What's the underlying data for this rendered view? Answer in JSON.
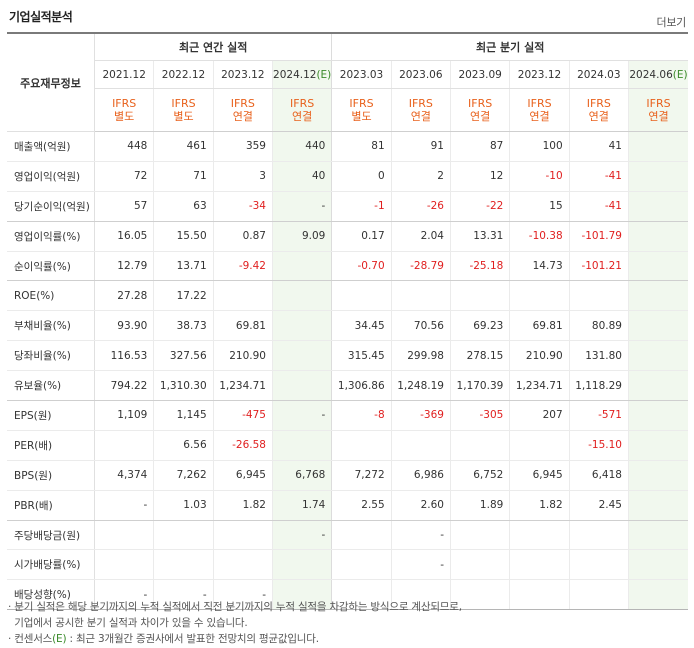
{
  "title": "기업실적분석",
  "more_label": "더보기",
  "header": {
    "label_col": "주요재무정보",
    "annual_group": "최근 연간 실적",
    "quarter_group": "최근 분기 실적",
    "periods": [
      {
        "date": "2021.12",
        "est": "",
        "ifrs": "IFRS",
        "basis": "별도"
      },
      {
        "date": "2022.12",
        "est": "",
        "ifrs": "IFRS",
        "basis": "별도"
      },
      {
        "date": "2023.12",
        "est": "",
        "ifrs": "IFRS",
        "basis": "연결"
      },
      {
        "date": "2024.12",
        "est": "(E)",
        "ifrs": "IFRS",
        "basis": "연결"
      },
      {
        "date": "2023.03",
        "est": "",
        "ifrs": "IFRS",
        "basis": "별도"
      },
      {
        "date": "2023.06",
        "est": "",
        "ifrs": "IFRS",
        "basis": "연결"
      },
      {
        "date": "2023.09",
        "est": "",
        "ifrs": "IFRS",
        "basis": "연결"
      },
      {
        "date": "2023.12",
        "est": "",
        "ifrs": "IFRS",
        "basis": "연결"
      },
      {
        "date": "2024.03",
        "est": "",
        "ifrs": "IFRS",
        "basis": "연결"
      },
      {
        "date": "2024.06",
        "est": "(E)",
        "ifrs": "IFRS",
        "basis": "연결"
      }
    ]
  },
  "rows": [
    {
      "label": "매출액(억원)",
      "values": [
        "448",
        "461",
        "359",
        "440",
        "81",
        "91",
        "87",
        "100",
        "41",
        ""
      ]
    },
    {
      "label": "영업이익(억원)",
      "values": [
        "72",
        "71",
        "3",
        "40",
        "0",
        "2",
        "12",
        "-10",
        "-41",
        ""
      ]
    },
    {
      "label": "당기순이익(억원)",
      "values": [
        "57",
        "63",
        "-34",
        "-",
        "-1",
        "-26",
        "-22",
        "15",
        "-41",
        ""
      ]
    },
    {
      "label": "영업이익률(%)",
      "values": [
        "16.05",
        "15.50",
        "0.87",
        "9.09",
        "0.17",
        "2.04",
        "13.31",
        "-10.38",
        "-101.79",
        ""
      ]
    },
    {
      "label": "순이익률(%)",
      "values": [
        "12.79",
        "13.71",
        "-9.42",
        "",
        "-0.70",
        "-28.79",
        "-25.18",
        "14.73",
        "-101.21",
        ""
      ]
    },
    {
      "label": "ROE(%)",
      "values": [
        "27.28",
        "17.22",
        "",
        "",
        "",
        "",
        "",
        "",
        "",
        ""
      ]
    },
    {
      "label": "부채비율(%)",
      "values": [
        "93.90",
        "38.73",
        "69.81",
        "",
        "34.45",
        "70.56",
        "69.23",
        "69.81",
        "80.89",
        ""
      ]
    },
    {
      "label": "당좌비율(%)",
      "values": [
        "116.53",
        "327.56",
        "210.90",
        "",
        "315.45",
        "299.98",
        "278.15",
        "210.90",
        "131.80",
        ""
      ]
    },
    {
      "label": "유보율(%)",
      "values": [
        "794.22",
        "1,310.30",
        "1,234.71",
        "",
        "1,306.86",
        "1,248.19",
        "1,170.39",
        "1,234.71",
        "1,118.29",
        ""
      ]
    },
    {
      "label": "EPS(원)",
      "values": [
        "1,109",
        "1,145",
        "-475",
        "-",
        "-8",
        "-369",
        "-305",
        "207",
        "-571",
        ""
      ]
    },
    {
      "label": "PER(배)",
      "values": [
        "",
        "6.56",
        "-26.58",
        "",
        "",
        "",
        "",
        "",
        "-15.10",
        ""
      ]
    },
    {
      "label": "BPS(원)",
      "values": [
        "4,374",
        "7,262",
        "6,945",
        "6,768",
        "7,272",
        "6,986",
        "6,752",
        "6,945",
        "6,418",
        ""
      ]
    },
    {
      "label": "PBR(배)",
      "values": [
        "-",
        "1.03",
        "1.82",
        "1.74",
        "2.55",
        "2.60",
        "1.89",
        "1.82",
        "2.45",
        ""
      ]
    },
    {
      "label": "주당배당금(원)",
      "values": [
        "",
        "",
        "",
        "-",
        "",
        "-",
        "",
        "",
        "",
        ""
      ]
    },
    {
      "label": "시가배당률(%)",
      "values": [
        "",
        "",
        "",
        "",
        "",
        "-",
        "",
        "",
        "",
        ""
      ]
    },
    {
      "label": "배당성향(%)",
      "values": [
        "-",
        "-",
        "-",
        "",
        "",
        "",
        "",
        "",
        "",
        ""
      ]
    }
  ],
  "notes": {
    "line1": "분기 실적은 해당 분기까지의 누적 실적에서 직전 분기까지의 누적 실적을 차감하는 방식으로 계산되므로,",
    "line2": "기업에서 공시한 분기 실적과 차이가 있을 수 있습니다.",
    "line3_pre": "컨센서스",
    "line3_e": "(E)",
    "line3_post": ": 최근 3개월간 증권사에서 발표한 전망치의 평균값입니다."
  },
  "colors": {
    "negative": "#e01f1f",
    "ifrs": "#e8611c",
    "estimate_bg": "#f1f8ee",
    "estimate_mark": "#3a8a2a"
  }
}
